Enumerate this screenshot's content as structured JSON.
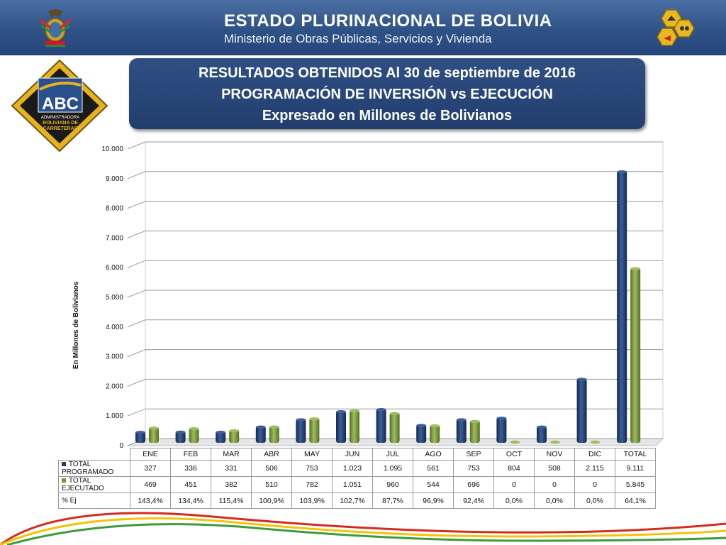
{
  "header": {
    "title": "ESTADO PLURINACIONAL DE BOLIVIA",
    "subtitle": "Ministerio de Obras Públicas, Servicios y Vivienda"
  },
  "abc_logo": {
    "text": "ABC",
    "caption_1": "ADMINISTRADORA",
    "caption_2": "BOLIVIANA DE",
    "caption_3": "CARRETERAS"
  },
  "title_box": {
    "line1": "RESULTADOS OBTENIDOS Al 30 de septiembre de 2016",
    "line2": "PROGRAMACIÓN DE INVERSIÓN vs EJECUCIÓN",
    "line3": "Expresado en Millones de Bolivianos"
  },
  "colors": {
    "programado": "#1f3d6e",
    "ejecutado": "#77963b",
    "banner": "#2f5286",
    "gold": "#d9a825"
  },
  "chart_data": {
    "type": "bar",
    "ylabel": "En Millones de Bolivianos",
    "ylim": [
      0,
      10000
    ],
    "yticks": [
      "0",
      "1.000",
      "2.000",
      "3.000",
      "4.000",
      "5.000",
      "6.000",
      "7.000",
      "8.000",
      "9.000",
      "10.000"
    ],
    "categories": [
      "ENE",
      "FEB",
      "MAR",
      "ABR",
      "MAY",
      "JUN",
      "JUL",
      "AGO",
      "SEP",
      "OCT",
      "NOV",
      "DIC",
      "TOTAL"
    ],
    "grid": true,
    "series": [
      {
        "name": "TOTAL PROGRAMADO",
        "name_line1": "TOTAL",
        "name_line2": "PROGRAMADO",
        "values": [
          327,
          336,
          331,
          506,
          753,
          1023,
          1095,
          561,
          753,
          804,
          508,
          2115,
          9111
        ],
        "labels": [
          "327",
          "336",
          "331",
          "506",
          "753",
          "1.023",
          "1.095",
          "561",
          "753",
          "804",
          "508",
          "2.115",
          "9.111"
        ]
      },
      {
        "name": "TOTAL EJECUTADO",
        "name_line1": "TOTAL",
        "name_line2": "EJECUTADO",
        "values": [
          469,
          451,
          382,
          510,
          782,
          1051,
          960,
          544,
          696,
          0,
          0,
          0,
          5845
        ],
        "labels": [
          "469",
          "451",
          "382",
          "510",
          "782",
          "1.051",
          "960",
          "544",
          "696",
          "0",
          "0",
          "0",
          "5.845"
        ]
      }
    ],
    "pct_label": "% Ej",
    "pct": [
      "143,4%",
      "134,4%",
      "115,4%",
      "100,9%",
      "103,9%",
      "102,7%",
      "87,7%",
      "96,9%",
      "92,4%",
      "0,0%",
      "0,0%",
      "0,0%",
      "64,1%"
    ]
  }
}
